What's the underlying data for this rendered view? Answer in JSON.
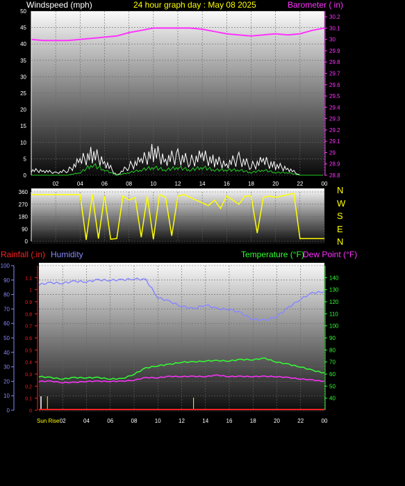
{
  "header": {
    "windspeed_label": "Windspeed (mph)",
    "title": "24 hour graph day : May 08 2025",
    "barometer_label": "Barometer ( in)"
  },
  "lower_header": {
    "rainfall_label": "Rainfall (.in)",
    "humidity_label": "Humidity",
    "temperature_label": "Temperature (°F)",
    "dewpoint_label": "Dew Point (°F)"
  },
  "compass": [
    "N",
    "W",
    "S",
    "E",
    "N"
  ],
  "sunrise_label": "Sun Rise",
  "colors": {
    "title": "#ffff00",
    "barometer": "#ff33ff",
    "rainfall": "#ff2222",
    "humidity": "#8888ff",
    "temperature": "#33ff33",
    "direction": "#ffff00",
    "wind": "#ffffff",
    "gust_avg": "#22cc22"
  },
  "chart_data": [
    {
      "type": "line",
      "name": "wind-barometer",
      "x_ticks": [
        "02",
        "04",
        "06",
        "08",
        "10",
        "12",
        "14",
        "16",
        "18",
        "20",
        "22",
        "00"
      ],
      "y_left_ticks": [
        "0",
        "5",
        "10",
        "15",
        "20",
        "25",
        "30",
        "35",
        "40",
        "45",
        "50"
      ],
      "y_left_range": [
        0,
        50
      ],
      "y_right_ticks": [
        "28.8",
        "28.9",
        "29",
        "29.1",
        "29.2",
        "29.3",
        "29.4",
        "29.5",
        "29.6",
        "29.7",
        "29.8",
        "29.9",
        "30",
        "30.1",
        "30.2"
      ],
      "y_right_range": [
        28.8,
        30.25
      ],
      "grid": true,
      "barometer": {
        "x": [
          0,
          1,
          2,
          3,
          4,
          5,
          6,
          7,
          8,
          9,
          10,
          11,
          12,
          13,
          14,
          15,
          16,
          17,
          18,
          19,
          20,
          21,
          22,
          23,
          24
        ],
        "y": [
          30.0,
          29.99,
          29.99,
          29.99,
          30.0,
          30.01,
          30.02,
          30.03,
          30.06,
          30.08,
          30.1,
          30.1,
          30.1,
          30.1,
          30.09,
          30.07,
          30.05,
          30.04,
          30.03,
          30.04,
          30.05,
          30.04,
          30.05,
          30.08,
          30.1
        ]
      },
      "wind_peak": {
        "x": [
          0,
          1,
          2,
          3,
          4,
          5,
          6,
          7,
          8,
          9,
          10,
          11,
          12,
          13,
          14,
          15,
          16,
          17,
          18,
          19,
          20,
          21,
          22,
          23,
          24
        ],
        "y": [
          2,
          2,
          1,
          2,
          6,
          9,
          6,
          0,
          4,
          6,
          10,
          7,
          8,
          6,
          8,
          6,
          5,
          7,
          4,
          6,
          4,
          3,
          0,
          0,
          0
        ]
      },
      "wind_avg": {
        "x": [
          0,
          1,
          2,
          3,
          4,
          5,
          6,
          7,
          8,
          9,
          10,
          11,
          12,
          13,
          14,
          15,
          16,
          17,
          18,
          19,
          20,
          21,
          22,
          23,
          24
        ],
        "y": [
          0,
          0,
          0,
          0,
          1,
          4,
          2,
          0,
          1,
          2,
          3,
          2,
          3,
          2,
          3,
          2,
          2,
          2,
          1,
          2,
          1,
          1,
          0,
          0,
          0
        ]
      }
    },
    {
      "type": "line",
      "name": "wind-direction",
      "y_ticks": [
        "0",
        "45",
        "90",
        "135",
        "180",
        "225",
        "270",
        "315",
        "360"
      ],
      "y_range": [
        0,
        360
      ],
      "x": [
        0,
        1,
        2,
        3,
        4,
        4.5,
        5,
        5.5,
        6,
        6.5,
        7,
        7.5,
        8,
        8.5,
        9,
        9.5,
        10,
        10.5,
        11,
        11.5,
        12,
        12.5,
        13,
        13.5,
        14,
        14.5,
        15,
        15.5,
        16,
        16.5,
        17,
        17.5,
        18,
        18.5,
        19,
        19.5,
        20,
        20.5,
        21,
        21.5,
        22,
        23,
        24
      ],
      "y": [
        340,
        340,
        340,
        340,
        340,
        10,
        340,
        20,
        330,
        15,
        20,
        330,
        300,
        320,
        30,
        330,
        15,
        340,
        320,
        40,
        330,
        340,
        320,
        300,
        280,
        260,
        300,
        240,
        330,
        300,
        270,
        330,
        330,
        60,
        320,
        330,
        320,
        330,
        340,
        350,
        20,
        20,
        20
      ]
    },
    {
      "type": "line",
      "name": "temperature-humidity",
      "y_humidity_ticks": [
        "0",
        "10",
        "20",
        "30",
        "40",
        "50",
        "60",
        "70",
        "80",
        "90",
        "100"
      ],
      "y_humidity_range": [
        0,
        100
      ],
      "y_rain_ticks": [
        "0",
        "0.1",
        "0.2",
        "0.3",
        "0.4",
        "0.5",
        "0.6",
        "0.7",
        "0.8",
        "0.9",
        "1",
        "1.1"
      ],
      "y_rain_range": [
        0,
        1.2
      ],
      "y_temp_ticks": [
        "40",
        "50",
        "60",
        "70",
        "80",
        "90",
        "100",
        "110",
        "120",
        "130",
        "140"
      ],
      "y_temp_range": [
        30,
        150
      ],
      "humidity": {
        "x": [
          0,
          1,
          2,
          3,
          4,
          5,
          6,
          7,
          8,
          9,
          10,
          11,
          12,
          13,
          14,
          15,
          16,
          17,
          18,
          19,
          20,
          21,
          22,
          23,
          24
        ],
        "y": [
          87,
          88,
          88,
          89,
          89,
          90,
          90,
          90,
          91,
          90,
          78,
          75,
          72,
          70,
          73,
          70,
          70,
          67,
          63,
          62,
          65,
          71,
          77,
          81,
          82
        ]
      },
      "temperature": {
        "x": [
          0,
          1,
          2,
          3,
          4,
          5,
          6,
          7,
          8,
          9,
          10,
          11,
          12,
          13,
          14,
          15,
          16,
          17,
          18,
          19,
          20,
          21,
          22,
          23,
          24
        ],
        "y": [
          58,
          57,
          56,
          57,
          57,
          57,
          56,
          56,
          60,
          65,
          67,
          68,
          70,
          70,
          71,
          71,
          71,
          72,
          72,
          73,
          70,
          68,
          66,
          63,
          61
        ]
      },
      "dewpoint": {
        "x": [
          0,
          1,
          2,
          3,
          4,
          5,
          6,
          7,
          8,
          9,
          10,
          11,
          12,
          13,
          14,
          15,
          16,
          17,
          18,
          19,
          20,
          21,
          22,
          23,
          24
        ],
        "y": [
          54,
          54,
          53,
          53,
          54,
          54,
          54,
          54,
          55,
          57,
          57,
          58,
          58,
          58,
          58,
          59,
          58,
          58,
          58,
          58,
          58,
          57,
          56,
          55,
          54
        ]
      },
      "rainfall": {
        "x": [
          0,
          24
        ],
        "y": [
          0,
          0
        ]
      },
      "sunrise_x": 1.3
    }
  ]
}
